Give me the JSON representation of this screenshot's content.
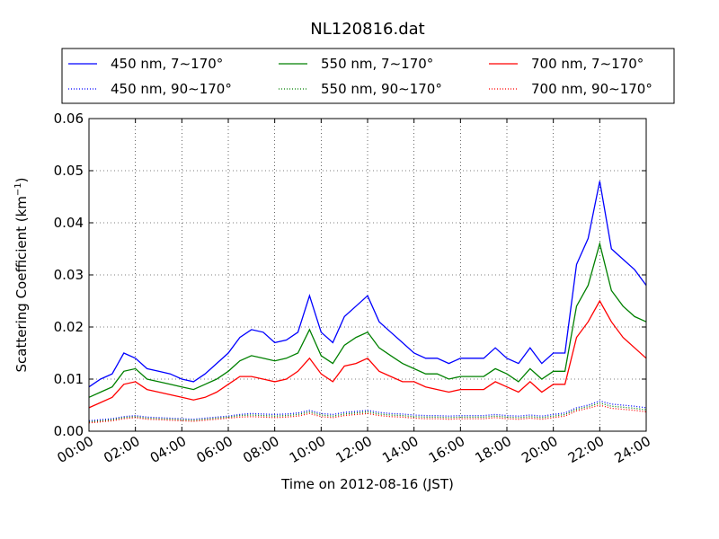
{
  "chart_data": {
    "type": "line",
    "title": "NL120816.dat",
    "xlabel": "Time on 2012-08-16 (JST)",
    "ylabel": "Scattering Coefficient (km",
    "ylabel_exponent": "−1",
    "ylabel_suffix": ")",
    "xlim": [
      0,
      24
    ],
    "ylim": [
      0,
      0.06
    ],
    "x_ticks": [
      0,
      2,
      4,
      6,
      8,
      10,
      12,
      14,
      16,
      18,
      20,
      22,
      24
    ],
    "x_tick_labels": [
      "00:00",
      "02:00",
      "04:00",
      "06:00",
      "08:00",
      "10:00",
      "12:00",
      "14:00",
      "16:00",
      "18:00",
      "20:00",
      "22:00",
      "24:00"
    ],
    "y_ticks": [
      0,
      0.01,
      0.02,
      0.03,
      0.04,
      0.05,
      0.06
    ],
    "y_tick_labels": [
      "0.00",
      "0.01",
      "0.02",
      "0.03",
      "0.04",
      "0.05",
      "0.06"
    ],
    "grid": true,
    "legend_position": "top",
    "x": [
      0,
      0.5,
      1,
      1.5,
      2,
      2.5,
      3,
      3.5,
      4,
      4.5,
      5,
      5.5,
      6,
      6.5,
      7,
      7.5,
      8,
      8.5,
      9,
      9.5,
      10,
      10.5,
      11,
      11.5,
      12,
      12.5,
      13,
      13.5,
      14,
      14.5,
      15,
      15.5,
      16,
      16.5,
      17,
      17.5,
      18,
      18.5,
      19,
      19.5,
      20,
      20.5,
      21,
      21.5,
      22,
      22.5,
      23,
      23.5,
      24
    ],
    "series": [
      {
        "name": "450 nm, 7∼170°",
        "color": "#0000ff",
        "style": "solid",
        "values": [
          0.0085,
          0.01,
          0.011,
          0.015,
          0.014,
          0.012,
          0.0115,
          0.011,
          0.01,
          0.0095,
          0.011,
          0.013,
          0.015,
          0.018,
          0.0195,
          0.019,
          0.017,
          0.0175,
          0.019,
          0.026,
          0.019,
          0.017,
          0.022,
          0.024,
          0.026,
          0.021,
          0.019,
          0.017,
          0.015,
          0.014,
          0.014,
          0.013,
          0.014,
          0.014,
          0.014,
          0.016,
          0.014,
          0.013,
          0.016,
          0.013,
          0.015,
          0.015,
          0.032,
          0.037,
          0.048,
          0.035,
          0.033,
          0.031,
          0.028
        ]
      },
      {
        "name": "550 nm, 7∼170°",
        "color": "#008000",
        "style": "solid",
        "values": [
          0.0065,
          0.0075,
          0.0085,
          0.0115,
          0.012,
          0.01,
          0.0095,
          0.009,
          0.0085,
          0.008,
          0.009,
          0.01,
          0.0115,
          0.0135,
          0.0145,
          0.014,
          0.0135,
          0.014,
          0.015,
          0.0195,
          0.0145,
          0.013,
          0.0165,
          0.018,
          0.019,
          0.016,
          0.0145,
          0.013,
          0.012,
          0.011,
          0.011,
          0.01,
          0.0105,
          0.0105,
          0.0105,
          0.012,
          0.011,
          0.0095,
          0.012,
          0.01,
          0.0115,
          0.0115,
          0.024,
          0.028,
          0.036,
          0.027,
          0.024,
          0.022,
          0.021
        ]
      },
      {
        "name": "700 nm, 7∼170°",
        "color": "#ff0000",
        "style": "solid",
        "values": [
          0.0045,
          0.0055,
          0.0065,
          0.009,
          0.0095,
          0.008,
          0.0075,
          0.007,
          0.0065,
          0.006,
          0.0065,
          0.0075,
          0.009,
          0.0105,
          0.0105,
          0.01,
          0.0095,
          0.01,
          0.0115,
          0.014,
          0.011,
          0.0095,
          0.0125,
          0.013,
          0.014,
          0.0115,
          0.0105,
          0.0095,
          0.0095,
          0.0085,
          0.008,
          0.0075,
          0.008,
          0.008,
          0.008,
          0.0095,
          0.0085,
          0.0075,
          0.0095,
          0.0075,
          0.009,
          0.009,
          0.018,
          0.021,
          0.025,
          0.021,
          0.018,
          0.016,
          0.014
        ]
      },
      {
        "name": "450 nm, 90∼170°",
        "color": "#0000ff",
        "style": "dotted",
        "values": [
          0.002,
          0.0022,
          0.0024,
          0.0028,
          0.003,
          0.0027,
          0.0026,
          0.0025,
          0.0024,
          0.0023,
          0.0025,
          0.0027,
          0.0029,
          0.0032,
          0.0034,
          0.0033,
          0.0032,
          0.0033,
          0.0035,
          0.004,
          0.0034,
          0.0032,
          0.0036,
          0.0038,
          0.004,
          0.0036,
          0.0034,
          0.0033,
          0.0031,
          0.003,
          0.003,
          0.0029,
          0.003,
          0.003,
          0.003,
          0.0032,
          0.003,
          0.0029,
          0.0031,
          0.0029,
          0.0032,
          0.0035,
          0.0045,
          0.005,
          0.0058,
          0.0052,
          0.005,
          0.0048,
          0.0045
        ]
      },
      {
        "name": "550 nm, 90∼170°",
        "color": "#008000",
        "style": "dotted",
        "values": [
          0.0018,
          0.002,
          0.0022,
          0.0026,
          0.0028,
          0.0025,
          0.0024,
          0.0023,
          0.0022,
          0.0021,
          0.0023,
          0.0025,
          0.0027,
          0.003,
          0.0031,
          0.003,
          0.0029,
          0.003,
          0.0032,
          0.0037,
          0.0031,
          0.0029,
          0.0033,
          0.0035,
          0.0037,
          0.0033,
          0.0031,
          0.003,
          0.0028,
          0.0027,
          0.0027,
          0.0026,
          0.0027,
          0.0027,
          0.0027,
          0.0029,
          0.0027,
          0.0026,
          0.0028,
          0.0026,
          0.0029,
          0.0032,
          0.0042,
          0.0047,
          0.0054,
          0.0048,
          0.0046,
          0.0044,
          0.0041
        ]
      },
      {
        "name": "700 nm, 90∼170°",
        "color": "#ff0000",
        "style": "dotted",
        "values": [
          0.0016,
          0.0018,
          0.002,
          0.0024,
          0.0026,
          0.0023,
          0.0022,
          0.0021,
          0.002,
          0.0019,
          0.0021,
          0.0023,
          0.0025,
          0.0027,
          0.0028,
          0.0027,
          0.0026,
          0.0027,
          0.0029,
          0.0034,
          0.0028,
          0.0026,
          0.003,
          0.0032,
          0.0034,
          0.003,
          0.0028,
          0.0027,
          0.0025,
          0.0024,
          0.0024,
          0.0023,
          0.0024,
          0.0024,
          0.0024,
          0.0026,
          0.0024,
          0.0023,
          0.0025,
          0.0023,
          0.0026,
          0.0029,
          0.0039,
          0.0044,
          0.005,
          0.0044,
          0.0042,
          0.004,
          0.0037
        ]
      }
    ]
  }
}
